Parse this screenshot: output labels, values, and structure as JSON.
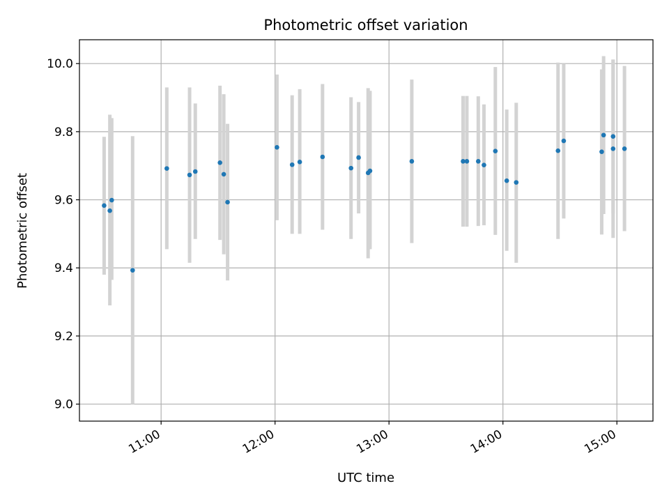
{
  "chart_data": {
    "type": "scatter",
    "title": "Photometric offset variation",
    "xlabel": "UTC time",
    "ylabel": "Photometric offset",
    "xlim": [
      "10:17",
      "15:19"
    ],
    "ylim": [
      8.95,
      10.07
    ],
    "x_ticks": [
      "11:00",
      "12:00",
      "13:00",
      "14:00",
      "15:00"
    ],
    "y_ticks": [
      "9.0",
      "9.2",
      "9.4",
      "9.6",
      "9.8",
      "10.0"
    ],
    "grid": true,
    "colors": {
      "points": "#1f77b4",
      "errorbars": "#d3d3d3",
      "grid": "#b0b0b0"
    },
    "points": [
      {
        "x": "10:30",
        "y": 9.583,
        "ylo": 9.38,
        "yhi": 9.785
      },
      {
        "x": "10:33",
        "y": 9.568,
        "ylo": 9.29,
        "yhi": 9.85
      },
      {
        "x": "10:34",
        "y": 9.599,
        "ylo": 9.365,
        "yhi": 9.84
      },
      {
        "x": "10:45",
        "y": 9.393,
        "ylo": 9.0,
        "yhi": 9.787
      },
      {
        "x": "11:03",
        "y": 9.692,
        "ylo": 9.455,
        "yhi": 9.93
      },
      {
        "x": "11:15",
        "y": 9.673,
        "ylo": 9.415,
        "yhi": 9.93
      },
      {
        "x": "11:18",
        "y": 9.683,
        "ylo": 9.485,
        "yhi": 9.883
      },
      {
        "x": "11:31",
        "y": 9.709,
        "ylo": 9.482,
        "yhi": 9.935
      },
      {
        "x": "11:33",
        "y": 9.675,
        "ylo": 9.44,
        "yhi": 9.91
      },
      {
        "x": "11:35",
        "y": 9.593,
        "ylo": 9.363,
        "yhi": 9.823
      },
      {
        "x": "12:01",
        "y": 9.754,
        "ylo": 9.54,
        "yhi": 9.968
      },
      {
        "x": "12:09",
        "y": 9.703,
        "ylo": 9.5,
        "yhi": 9.907
      },
      {
        "x": "12:13",
        "y": 9.711,
        "ylo": 9.5,
        "yhi": 9.925
      },
      {
        "x": "12:25",
        "y": 9.726,
        "ylo": 9.512,
        "yhi": 9.94
      },
      {
        "x": "12:40",
        "y": 9.693,
        "ylo": 9.485,
        "yhi": 9.901
      },
      {
        "x": "12:44",
        "y": 9.724,
        "ylo": 9.56,
        "yhi": 9.887
      },
      {
        "x": "12:49",
        "y": 9.679,
        "ylo": 9.428,
        "yhi": 9.928
      },
      {
        "x": "12:50",
        "y": 9.685,
        "ylo": 9.455,
        "yhi": 9.92
      },
      {
        "x": "13:12",
        "y": 9.713,
        "ylo": 9.473,
        "yhi": 9.953
      },
      {
        "x": "13:39",
        "y": 9.713,
        "ylo": 9.521,
        "yhi": 9.905
      },
      {
        "x": "13:41",
        "y": 9.713,
        "ylo": 9.521,
        "yhi": 9.905
      },
      {
        "x": "13:47",
        "y": 9.713,
        "ylo": 9.523,
        "yhi": 9.904
      },
      {
        "x": "13:50",
        "y": 9.702,
        "ylo": 9.525,
        "yhi": 9.88
      },
      {
        "x": "13:56",
        "y": 9.743,
        "ylo": 9.497,
        "yhi": 9.99
      },
      {
        "x": "14:02",
        "y": 9.656,
        "ylo": 9.45,
        "yhi": 9.865
      },
      {
        "x": "14:07",
        "y": 9.651,
        "ylo": 9.415,
        "yhi": 9.885
      },
      {
        "x": "14:29",
        "y": 9.744,
        "ylo": 9.485,
        "yhi": 10.003
      },
      {
        "x": "14:32",
        "y": 9.773,
        "ylo": 9.545,
        "yhi": 10.0
      },
      {
        "x": "14:52",
        "y": 9.741,
        "ylo": 9.498,
        "yhi": 9.983
      },
      {
        "x": "14:53",
        "y": 9.79,
        "ylo": 9.558,
        "yhi": 10.022
      },
      {
        "x": "14:58",
        "y": 9.786,
        "ylo": 9.56,
        "yhi": 10.012
      },
      {
        "x": "14:58",
        "y": 9.75,
        "ylo": 9.488,
        "yhi": 10.012
      },
      {
        "x": "15:04",
        "y": 9.75,
        "ylo": 9.508,
        "yhi": 9.993
      }
    ]
  }
}
